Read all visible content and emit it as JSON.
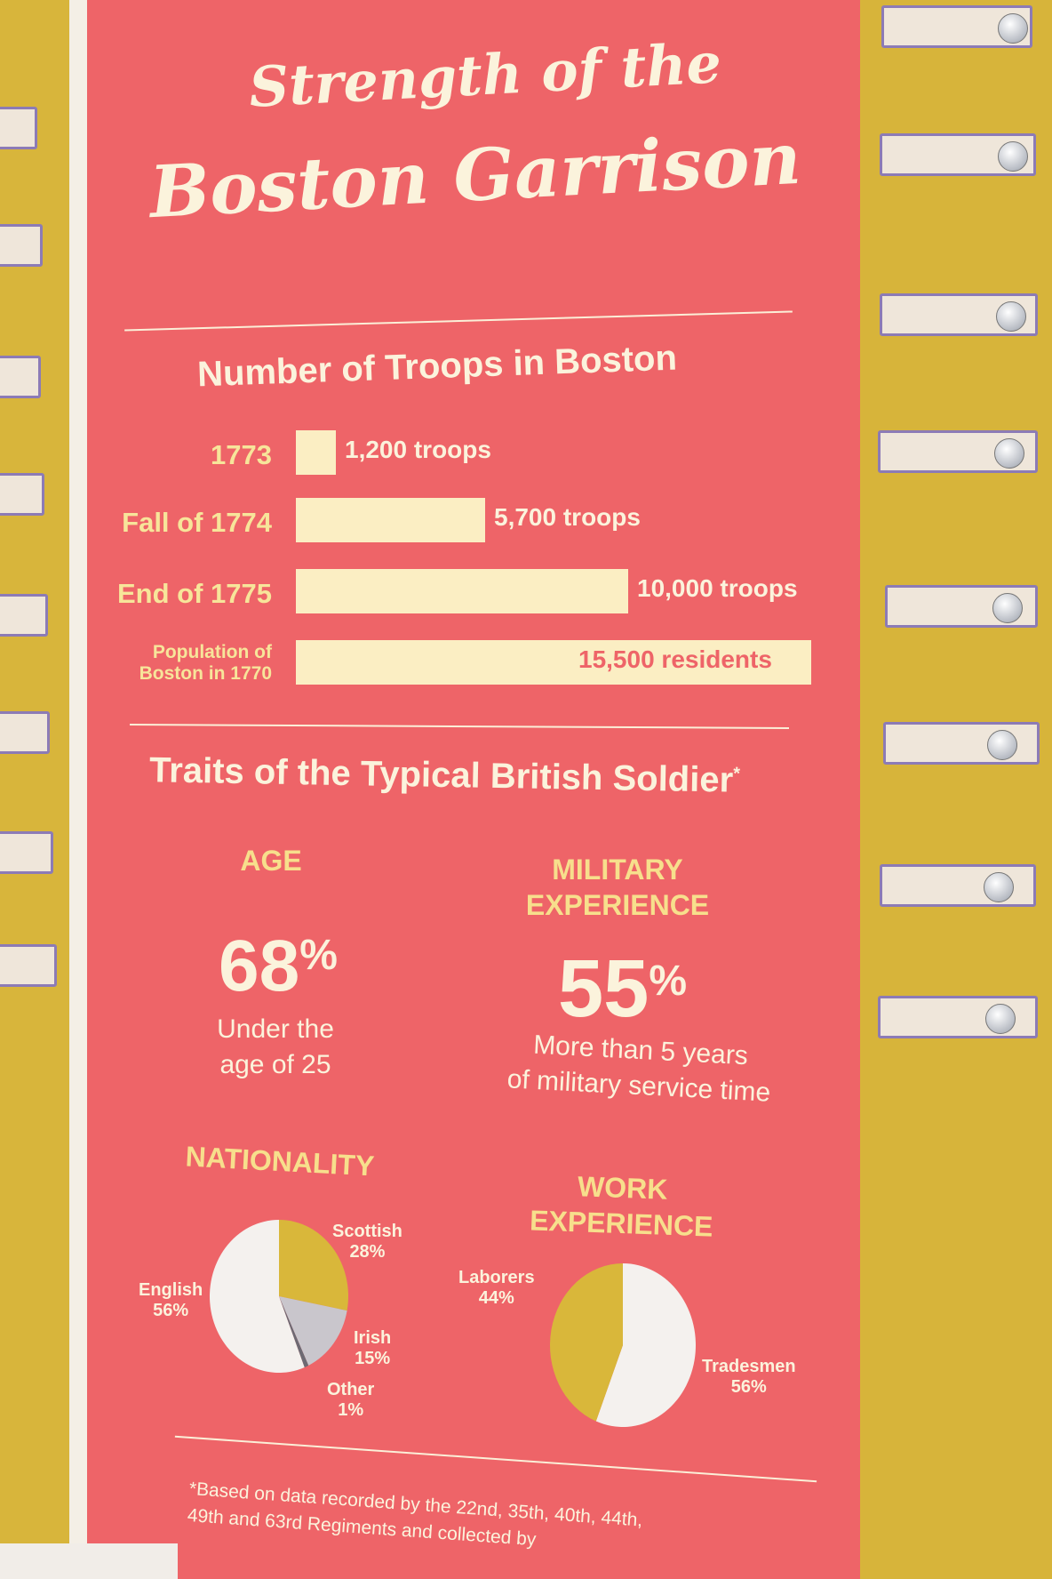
{
  "title": {
    "line1": "Strength of the",
    "line2": "Boston Garrison"
  },
  "troops_heading": "Number of Troops in Boston",
  "traits_heading": "Traits of the Typical British Soldier",
  "traits_asterisk": "*",
  "age": {
    "heading": "AGE",
    "value": "68",
    "pct_sign": "%",
    "desc_line1": "Under the",
    "desc_line2": "age of 25"
  },
  "military": {
    "heading_line1": "MILITARY",
    "heading_line2": "EXPERIENCE",
    "value": "55",
    "pct_sign": "%",
    "desc_line1": "More than 5 years",
    "desc_line2": "of military service time"
  },
  "nationality_heading": "NATIONALITY",
  "work_heading_line1": "WORK",
  "work_heading_line2": "EXPERIENCE",
  "footnote": {
    "line1": "*Based on data recorded by the 22nd, 35th, 40th, 44th,",
    "line2": "49th and 63rd Regiments and collected by"
  },
  "colors": {
    "banner": "#ee6468",
    "bar": "#fbeec3",
    "pie_gold": "#d9b73a",
    "pie_white": "#f4f1ee",
    "pie_grey": "#c9c6cc",
    "pie_dark": "#6d6a73"
  },
  "chart_data": [
    {
      "type": "bar",
      "title": "Number of Troops in Boston",
      "orientation": "horizontal",
      "categories": [
        "1773",
        "Fall of 1774",
        "End of 1775",
        "Population of Boston in 1770"
      ],
      "category_lines": [
        [
          "1773"
        ],
        [
          "Fall of 1774"
        ],
        [
          "End of 1775"
        ],
        [
          "Population of",
          "Boston in 1770"
        ]
      ],
      "values": [
        1200,
        5700,
        10000,
        15500
      ],
      "value_labels": [
        "1,200 troops",
        "5,700 troops",
        "10,000 troops",
        "15,500 residents"
      ],
      "xlim": [
        0,
        15500
      ],
      "grid": false
    },
    {
      "type": "pie",
      "title": "NATIONALITY",
      "slices": [
        {
          "label": "Scottish",
          "pct_label": "28%",
          "value": 28,
          "color": "#d9b73a"
        },
        {
          "label": "Irish",
          "pct_label": "15%",
          "value": 15,
          "color": "#c9c6cc"
        },
        {
          "label": "Other",
          "pct_label": "1%",
          "value": 1,
          "color": "#6d6a73"
        },
        {
          "label": "English",
          "pct_label": "56%",
          "value": 56,
          "color": "#f4f1ee"
        }
      ]
    },
    {
      "type": "pie",
      "title": "WORK EXPERIENCE",
      "slices": [
        {
          "label": "Tradesmen",
          "pct_label": "56%",
          "value": 56,
          "color": "#f4f1ee"
        },
        {
          "label": "Laborers",
          "pct_label": "44%",
          "value": 44,
          "color": "#d9b73a"
        }
      ]
    }
  ]
}
